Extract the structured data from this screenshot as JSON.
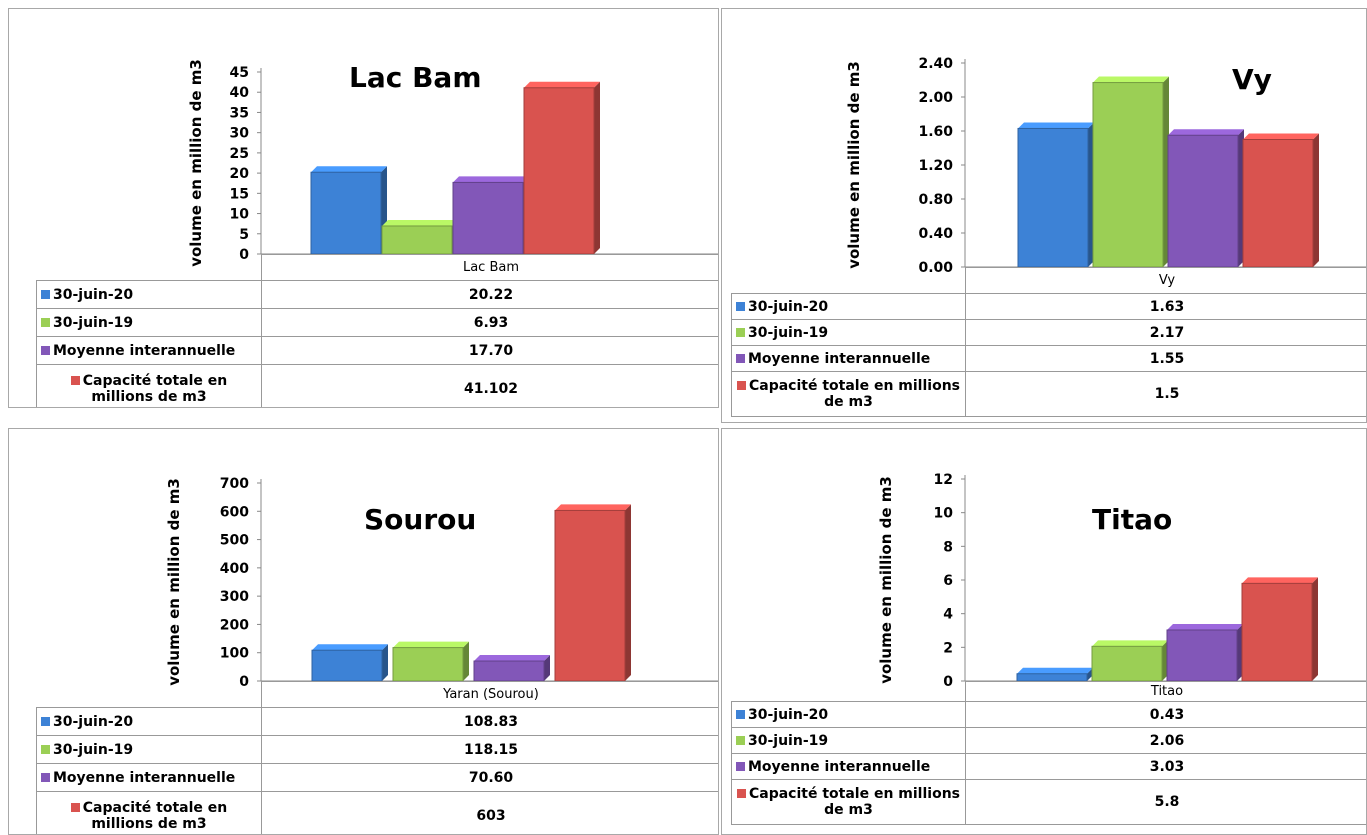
{
  "colors": {
    "30-juin-20": "#3d82d6",
    "30-juin-19": "#9bcf55",
    "moyenne": "#8257b8",
    "capacite": "#d9534f"
  },
  "legend_labels": [
    "30-juin-20",
    "30-juin-19",
    "Moyenne interannuelle",
    "Capacité totale en millions de m3"
  ],
  "chart_data": [
    {
      "type": "bar",
      "title": "Lac Bam",
      "ylabel": "volume en million de m3",
      "categories": [
        "Lac Bam"
      ],
      "ylim": [
        0,
        45
      ],
      "yticks": [
        "45",
        "40",
        "35",
        "30",
        "25",
        "20",
        "15",
        "10",
        "5",
        "0"
      ],
      "series": [
        {
          "name": "30-juin-20",
          "values": [
            20.22
          ],
          "label": "20.22"
        },
        {
          "name": "30-juin-19",
          "values": [
            6.93
          ],
          "label": "6.93"
        },
        {
          "name": "Moyenne interannuelle",
          "values": [
            17.7
          ],
          "label": "17.70"
        },
        {
          "name": "Capacité totale en millions de m3",
          "values": [
            41.102
          ],
          "label": "41.102"
        }
      ]
    },
    {
      "type": "bar",
      "title": "Vy",
      "ylabel": "volume en million de m3",
      "categories": [
        "Vy"
      ],
      "ylim": [
        0,
        2.4
      ],
      "yticks": [
        "2.40",
        "2.00",
        "1.60",
        "1.20",
        "0.80",
        "0.40",
        "0.00"
      ],
      "series": [
        {
          "name": "30-juin-20",
          "values": [
            1.63
          ],
          "label": "1.63"
        },
        {
          "name": "30-juin-19",
          "values": [
            2.17
          ],
          "label": "2.17"
        },
        {
          "name": "Moyenne interannuelle",
          "values": [
            1.55
          ],
          "label": "1.55"
        },
        {
          "name": "Capacité totale en millions de m3",
          "values": [
            1.5
          ],
          "label": "1.5"
        }
      ]
    },
    {
      "type": "bar",
      "title": "Sourou",
      "ylabel": "volume en million de m3",
      "categories": [
        "Yaran (Sourou)"
      ],
      "ylim": [
        0,
        700
      ],
      "yticks": [
        "700",
        "600",
        "500",
        "400",
        "300",
        "200",
        "100",
        "0"
      ],
      "series": [
        {
          "name": "30-juin-20",
          "values": [
            108.83
          ],
          "label": "108.83"
        },
        {
          "name": "30-juin-19",
          "values": [
            118.15
          ],
          "label": "118.15"
        },
        {
          "name": "Moyenne interannuelle",
          "values": [
            70.6
          ],
          "label": "70.60"
        },
        {
          "name": "Capacité totale en millions de m3",
          "values": [
            603
          ],
          "label": "603"
        }
      ]
    },
    {
      "type": "bar",
      "title": "Titao",
      "ylabel": "volume en million de m3",
      "categories": [
        "Titao"
      ],
      "ylim": [
        0,
        12
      ],
      "yticks": [
        "12",
        "10",
        "8",
        "6",
        "4",
        "2",
        "0"
      ],
      "series": [
        {
          "name": "30-juin-20",
          "values": [
            0.43
          ],
          "label": "0.43"
        },
        {
          "name": "30-juin-19",
          "values": [
            2.06
          ],
          "label": "2.06"
        },
        {
          "name": "Moyenne interannuelle",
          "values": [
            3.03
          ],
          "label": "3.03"
        },
        {
          "name": "Capacité totale en millions de m3",
          "values": [
            5.8
          ],
          "label": "5.8"
        }
      ]
    }
  ]
}
